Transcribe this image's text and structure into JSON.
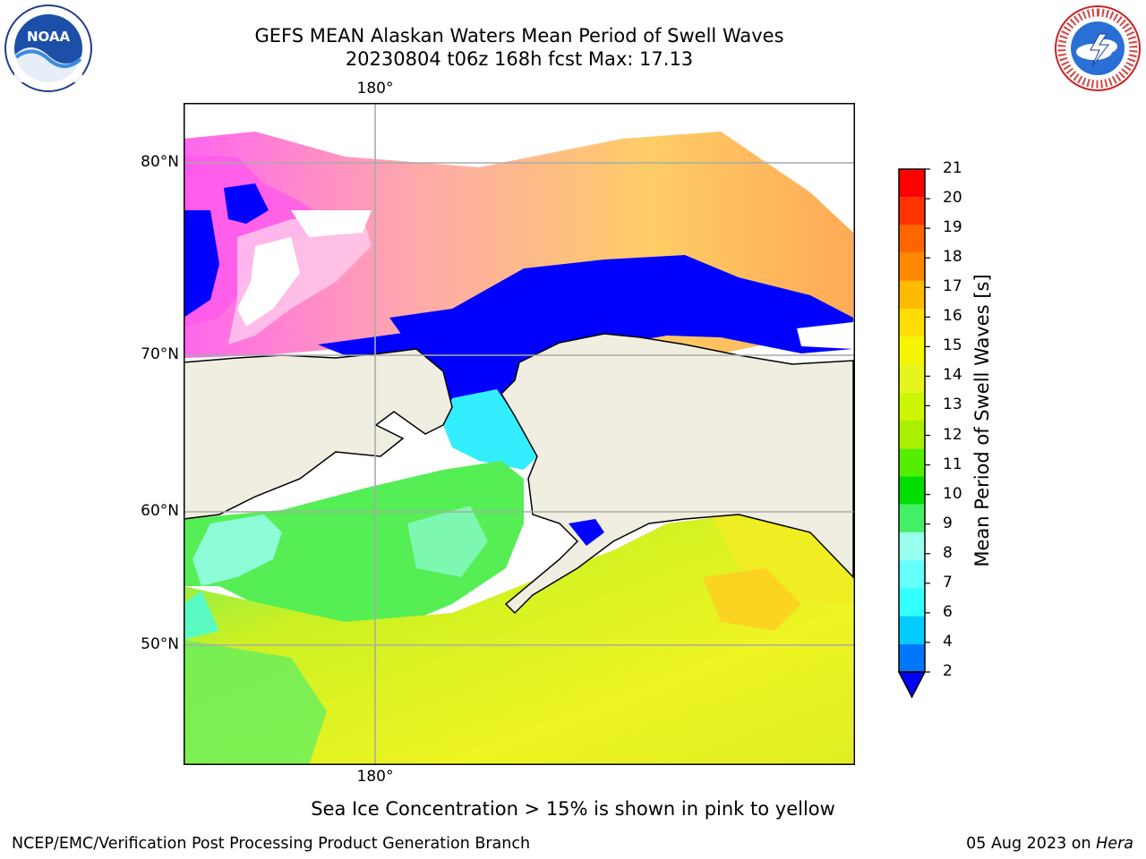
{
  "header": {
    "title_line1": "GEFS MEAN Alaskan Waters Mean Period of Swell Waves",
    "title_line2": "20230804 t06z 168h fcst   Max: 17.13"
  },
  "logos": {
    "left": {
      "icon": "noaa-logo",
      "text": "NOAA"
    },
    "right": {
      "icon": "nws-logo",
      "text": "NATIONAL WEATHER SERVICE"
    }
  },
  "map": {
    "top_lon_label": "180°",
    "bottom_lon_label": "180°",
    "lat_labels": [
      "80°N",
      "70°N",
      "60°N",
      "50°N"
    ],
    "colors": {
      "land": "#f0eee0",
      "deep_blue": "#0000ff",
      "pink": "#ff55dd",
      "ice_orange": "#ffbb55",
      "swell_green": "#44ee44",
      "swell_yellow": "#e6f51e",
      "swell_cyan": "#33ffee"
    }
  },
  "colorbar": {
    "label": "Mean Period of Swell Waves [s]",
    "ticks": [
      "2",
      "4",
      "6",
      "7",
      "8",
      "9",
      "10",
      "11",
      "12",
      "13",
      "14",
      "15",
      "16",
      "17",
      "18",
      "19",
      "20",
      "21"
    ],
    "colors": [
      "#0077ff",
      "#00ccff",
      "#33ffff",
      "#66ffff",
      "#99ffee",
      "#44ee66",
      "#00dd00",
      "#55ee00",
      "#aaee00",
      "#ccf500",
      "#e6f51e",
      "#f5f500",
      "#ffdd00",
      "#ffbb00",
      "#ff8800",
      "#ff6600",
      "#ff3300",
      "#ff0000"
    ],
    "extend_color": "#0000ff"
  },
  "footer": {
    "note": "Sea Ice Concentration > 15% is shown in pink to yellow",
    "left": "NCEP/EMC/Verification Post Processing Product Generation Branch",
    "right_date": "05 Aug 2023 on ",
    "right_host": "Hera"
  }
}
